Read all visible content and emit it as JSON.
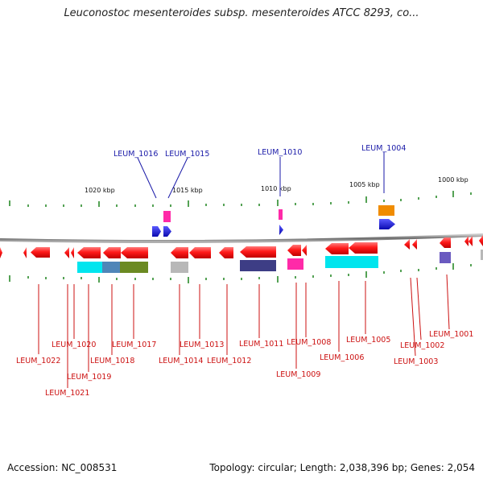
{
  "title": "Leuconostoc mesenteroides subsp. mesenteroides ATCC 8293, co...",
  "footer": {
    "accession": "Accession: NC_008531",
    "summary": "Topology: circular; Length: 2,038,396 bp; Genes: 2,054"
  },
  "colors": {
    "gene_red": "#ff1a1a",
    "gene_blue": "#1a1ad8",
    "label_red": "#cc1111",
    "label_blue": "#1a1aa8",
    "tick_green": "#2a8a2a",
    "backbone": "#8c8c8c",
    "cyan": "#00e5ee",
    "steelblue": "#4f86b8",
    "olive": "#6b8a22",
    "gray": "#b8b8b8",
    "navy": "#3d3d85",
    "magenta": "#ff2aa8",
    "orange": "#f08c00",
    "slate": "#6a5ac0"
  },
  "scale_labels": [
    "1020 kbp",
    "1015 kbp",
    "1010 kbp",
    "1005 kbp",
    "1000 kbp"
  ],
  "top_gene_labels": [
    "LEUM_1016",
    "LEUM_1015",
    "LEUM_1010",
    "LEUM_1004"
  ],
  "bottom_gene_labels": [
    "LEUM_1022",
    "LEUM_1021",
    "LEUM_1020",
    "LEUM_1019",
    "LEUM_1018",
    "LEUM_1017",
    "LEUM_1014",
    "LEUM_1013",
    "LEUM_1012",
    "LEUM_1011",
    "LEUM_1009",
    "LEUM_1008",
    "LEUM_1006",
    "LEUM_1005",
    "LEUM_1003",
    "LEUM_1002",
    "LEUM_1001"
  ],
  "chart_data": {
    "type": "genome_map",
    "region_kbp": [
      998,
      1024
    ],
    "direction": "positions decrease left to right",
    "scale_ticks_kbp": [
      1020,
      1015,
      1010,
      1005,
      1000
    ],
    "forward_genes": [
      "LEUM_1016",
      "LEUM_1015",
      "LEUM_1010",
      "LEUM_1004"
    ],
    "reverse_genes": [
      "LEUM_1022",
      "LEUM_1021",
      "LEUM_1020",
      "LEUM_1019",
      "LEUM_1018",
      "LEUM_1017",
      "LEUM_1014",
      "LEUM_1013",
      "LEUM_1012",
      "LEUM_1011",
      "LEUM_1009",
      "LEUM_1008",
      "LEUM_1006",
      "LEUM_1005",
      "LEUM_1003",
      "LEUM_1002",
      "LEUM_1001"
    ]
  }
}
